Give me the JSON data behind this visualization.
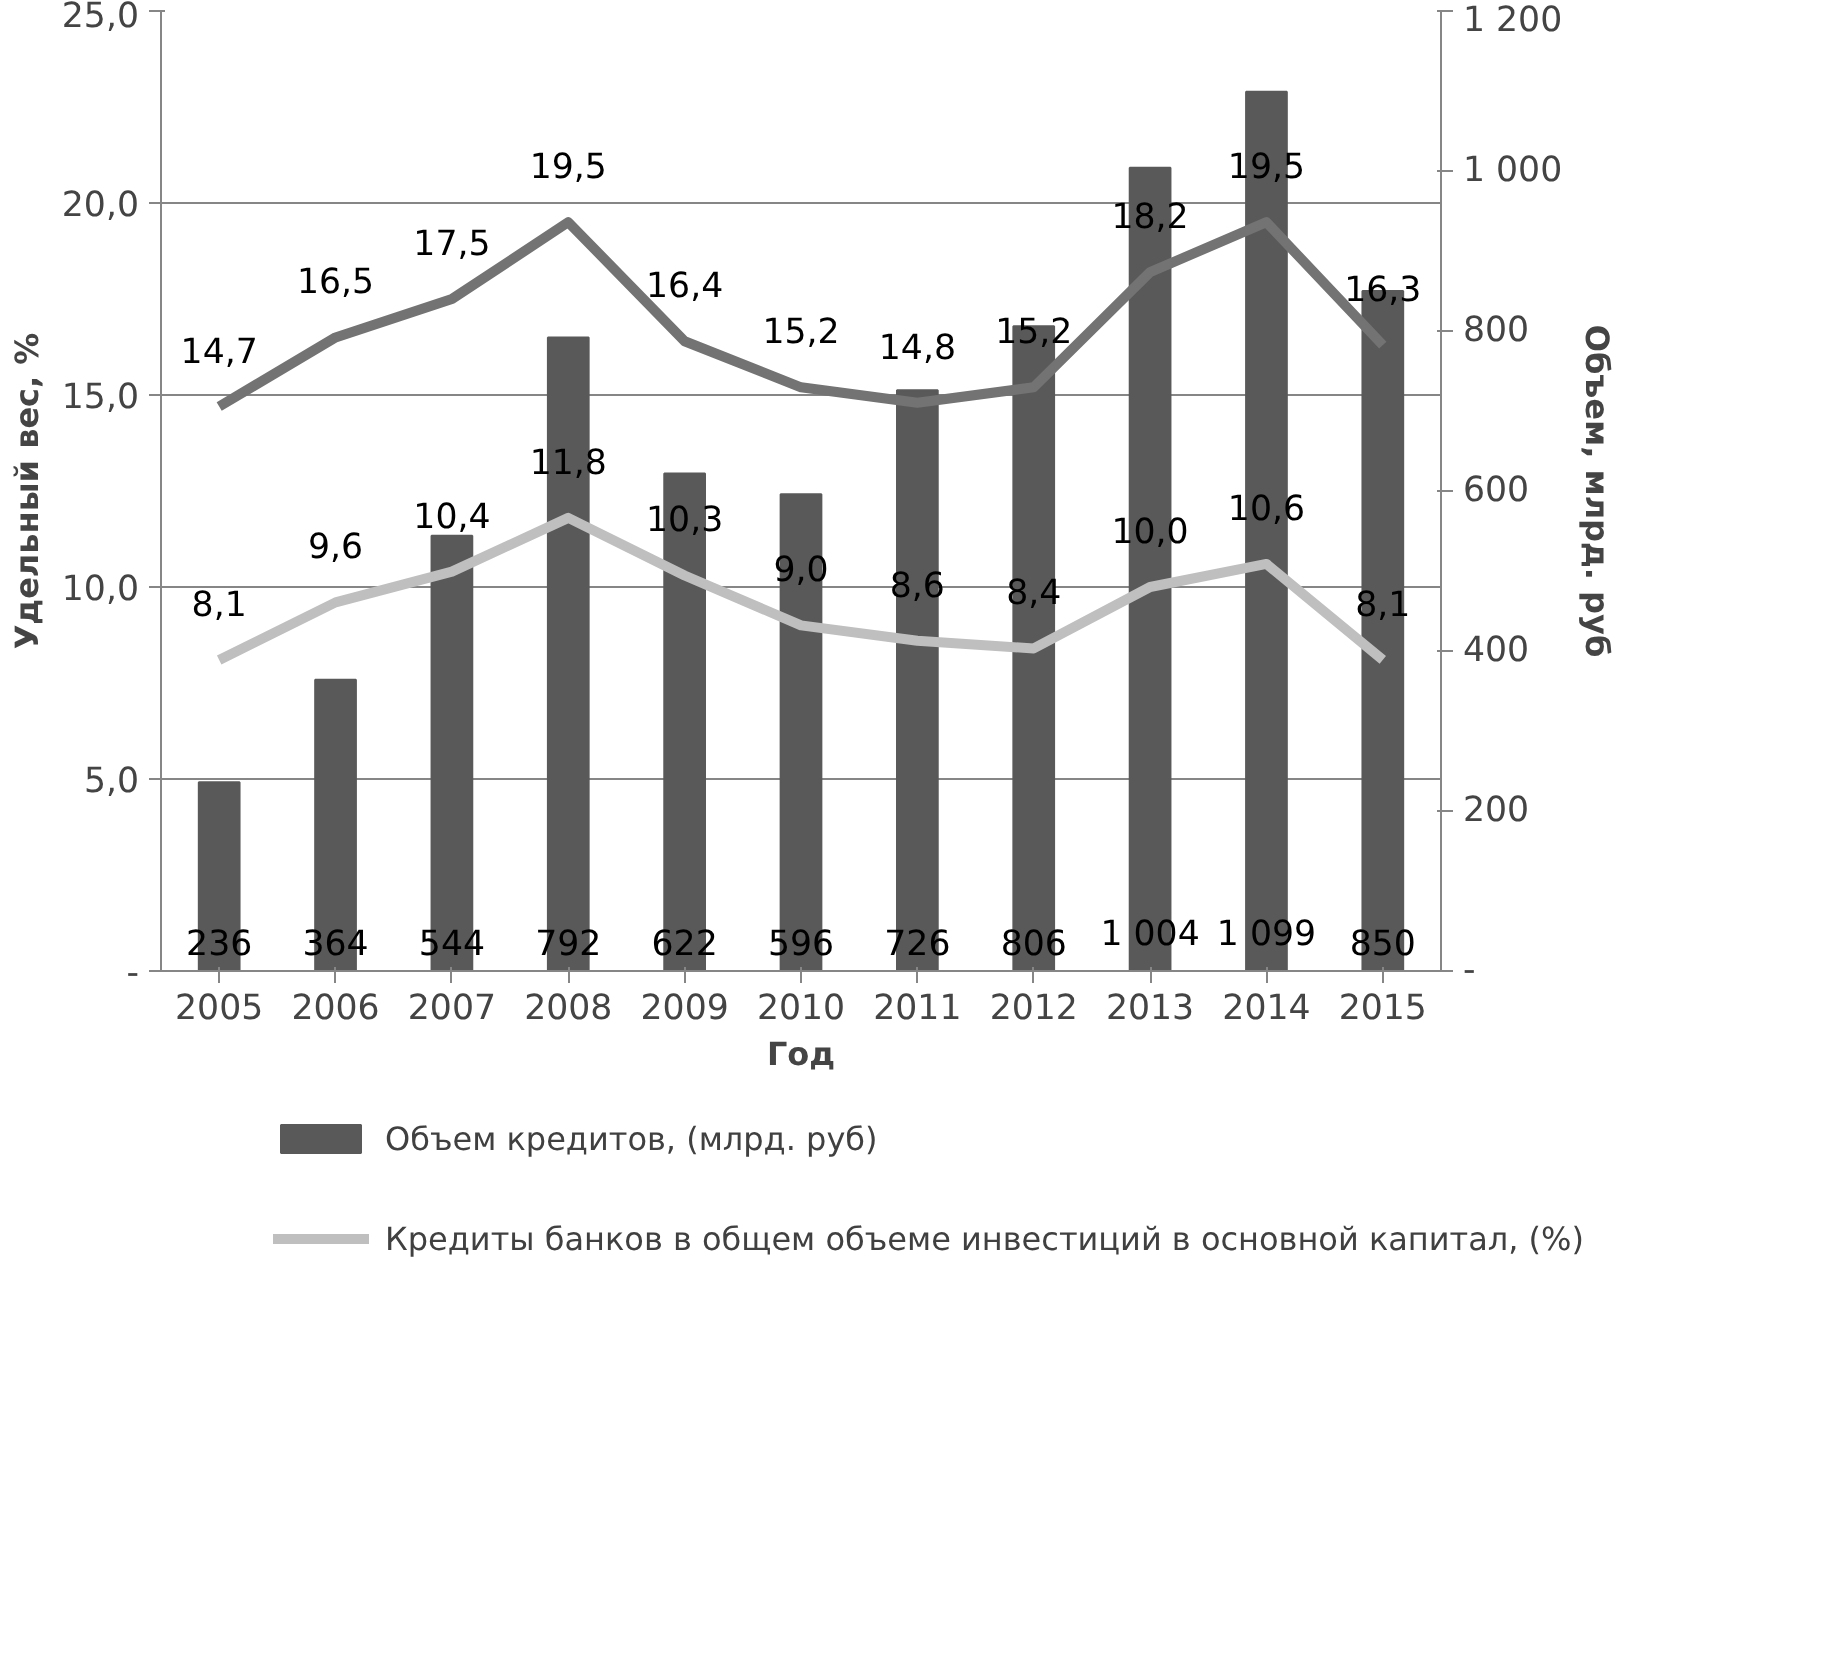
{
  "chart_data": {
    "type": "bar",
    "xlabel": "Год",
    "ylabel": "Удельный вес, %",
    "y2label": "Объем, млрд. руб",
    "categories": [
      "2005",
      "2006",
      "2007",
      "2008",
      "2009",
      "2010",
      "2011",
      "2012",
      "2013",
      "2014",
      "2015"
    ],
    "series": [
      {
        "name": "Объем кредитов, (млрд. руб)",
        "axis": "y2",
        "color": "#595959",
        "values": [
          236,
          364,
          544,
          792,
          622,
          596,
          726,
          806,
          1004,
          1099,
          850
        ],
        "value_labels": [
          "236",
          "364",
          "544",
          "792",
          "622",
          "596",
          "726",
          "806",
          "1 004",
          "1 099",
          "850"
        ]
      },
      {
        "type": "line",
        "axis": "y",
        "color": "#737373",
        "values": [
          14.7,
          16.5,
          17.5,
          19.5,
          16.4,
          15.2,
          14.8,
          15.2,
          18.2,
          19.5,
          16.3
        ],
        "value_labels": [
          "14,7",
          "16,5",
          "17,5",
          "19,5",
          "16,4",
          "15,2",
          "14,8",
          "15,2",
          "18,2",
          "19,5",
          "16,3"
        ]
      },
      {
        "name": "Кредиты банков в общем объеме инвестиций в основной капитал, (%)",
        "type": "line",
        "axis": "y",
        "color": "#bfbfbf",
        "values": [
          8.1,
          9.6,
          10.4,
          11.8,
          10.3,
          9.0,
          8.6,
          8.4,
          10.0,
          10.6,
          8.1
        ],
        "value_labels": [
          "8,1",
          "9,6",
          "10,4",
          "11,8",
          "10,3",
          "9,0",
          "8,6",
          "8,4",
          "10,0",
          "10,6",
          "8,1"
        ]
      }
    ],
    "ylim": [
      0,
      25
    ],
    "yticks": [
      {
        "value": 0,
        "label": "-"
      },
      {
        "value": 5,
        "label": "5,0"
      },
      {
        "value": 10,
        "label": "10,0"
      },
      {
        "value": 15,
        "label": "15,0"
      },
      {
        "value": 20,
        "label": "20,0"
      },
      {
        "value": 25,
        "label": "25,0"
      }
    ],
    "y2lim": [
      0,
      1200
    ],
    "y2ticks": [
      {
        "value": 0,
        "label": "-"
      },
      200,
      400,
      600,
      800,
      {
        "value": 1000,
        "label": "1 000"
      },
      {
        "value": 1200,
        "label": "1 200"
      }
    ],
    "grid": "y",
    "legend": "bottom"
  }
}
